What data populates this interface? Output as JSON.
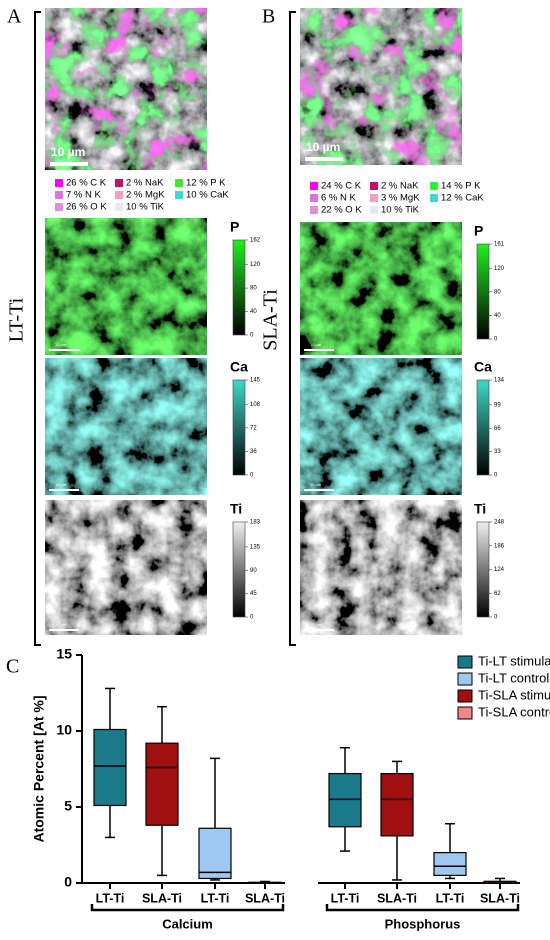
{
  "panels": [
    {
      "label": "A",
      "row_label": "LT-Ti",
      "scale_bar": "10 µm",
      "legend": [
        {
          "text": "26 % C K",
          "color": "#ff00ff"
        },
        {
          "text": "2 % NaK",
          "color": "#c0106a"
        },
        {
          "text": "12 % P K",
          "color": "#33ee33"
        },
        {
          "text": "7 % N K",
          "color": "#e070e0"
        },
        {
          "text": "2 % MgK",
          "color": "#f0a0c0"
        },
        {
          "text": "10 % CaK",
          "color": "#40d8d0"
        },
        {
          "text": "26 % O K",
          "color": "#e090d8"
        },
        {
          "text": "10 % TiK",
          "color": "#e8e8f0"
        }
      ],
      "maps": [
        {
          "element": "P",
          "color": "#22ee22",
          "ticks": [
            162,
            120,
            80,
            40,
            0
          ],
          "scale_bar": "10 µm"
        },
        {
          "element": "Ca",
          "color": "#40d8c8",
          "ticks": [
            145,
            108,
            72,
            36,
            0
          ],
          "scale_bar": "10 µm"
        },
        {
          "element": "Ti",
          "color": "#f0f0f0",
          "ticks": [
            183,
            135,
            90,
            45,
            0
          ],
          "scale_bar": "10 µm"
        }
      ]
    },
    {
      "label": "B",
      "row_label": "SLA-Ti",
      "scale_bar": "10 µm",
      "legend": [
        {
          "text": "24 % C K",
          "color": "#ff00ff"
        },
        {
          "text": "2 % NaK",
          "color": "#c0106a"
        },
        {
          "text": "14 % P K",
          "color": "#33ee33"
        },
        {
          "text": "6 % N K",
          "color": "#e070e0"
        },
        {
          "text": "3 % MgK",
          "color": "#f0a0c0"
        },
        {
          "text": "12 % CaK",
          "color": "#40d8d0"
        },
        {
          "text": "22 % O K",
          "color": "#e090d8"
        },
        {
          "text": "10 % TiK",
          "color": "#e8e8f0"
        }
      ],
      "maps": [
        {
          "element": "P",
          "color": "#22ee22",
          "ticks": [
            161,
            120,
            80,
            40,
            0
          ],
          "scale_bar": "10 µm"
        },
        {
          "element": "Ca",
          "color": "#40d8c8",
          "ticks": [
            134,
            99,
            66,
            33,
            0
          ],
          "scale_bar": "10 µm"
        },
        {
          "element": "Ti",
          "color": "#f0f0f0",
          "ticks": [
            248,
            186,
            124,
            62,
            0
          ],
          "scale_bar": "10 µm"
        }
      ]
    }
  ],
  "chart_data": {
    "type": "box",
    "panel_label": "C",
    "y_label": "Atomic Percent [At %]",
    "ylim": [
      0,
      15
    ],
    "yticks": [
      0,
      5,
      10,
      15
    ],
    "categories": [
      "Calcium",
      "Phosphorus"
    ],
    "legend_position": "upper right",
    "series": [
      {
        "name": "Ti-LT stimulated",
        "color": "#1a7a8c",
        "box_label": "LT-Ti",
        "values": [
          {
            "min": 3.0,
            "q1": 5.1,
            "median": 7.7,
            "q3": 10.1,
            "max": 12.8
          },
          {
            "min": 2.1,
            "q1": 3.7,
            "median": 5.5,
            "q3": 7.2,
            "max": 8.9
          }
        ]
      },
      {
        "name": "Ti-LT control",
        "color": "#9ec8f2",
        "box_label": "LT-Ti",
        "values": [
          {
            "min": 0.2,
            "q1": 0.3,
            "median": 0.7,
            "q3": 3.6,
            "max": 8.2
          },
          {
            "min": 0.3,
            "q1": 0.5,
            "median": 1.1,
            "q3": 2.0,
            "max": 3.9
          }
        ]
      },
      {
        "name": "Ti-SLA stimulated",
        "color": "#a01010",
        "box_label": "SLA-Ti",
        "values": [
          {
            "min": 0.5,
            "q1": 3.8,
            "median": 7.6,
            "q3": 9.2,
            "max": 11.6
          },
          {
            "min": 0.2,
            "q1": 3.1,
            "median": 5.5,
            "q3": 7.2,
            "max": 8.0
          }
        ]
      },
      {
        "name": "Ti-SLA control",
        "color": "#f08888",
        "box_label": "SLA-Ti",
        "values": [
          {
            "min": 0,
            "q1": 0,
            "median": 0,
            "q3": 0.05,
            "max": 0.1
          },
          {
            "min": 0,
            "q1": 0,
            "median": 0.1,
            "q3": 0.1,
            "max": 0.3
          }
        ]
      }
    ]
  }
}
